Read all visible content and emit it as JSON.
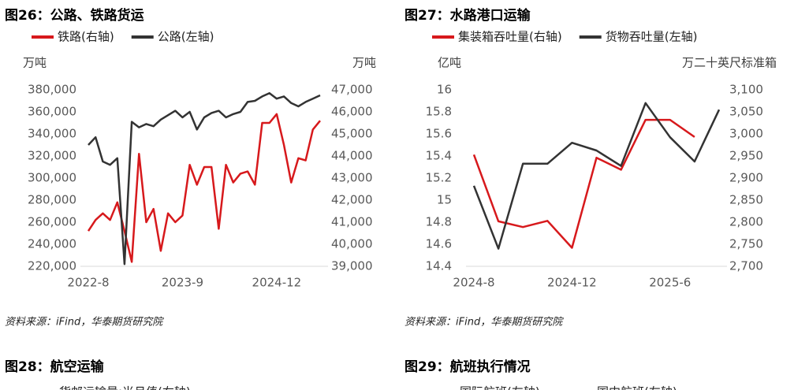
{
  "chart_data": [
    {
      "type": "line",
      "title": "图26：公路、铁路货运",
      "y_unit": "万吨",
      "y2_unit": "万吨",
      "categories": [
        "2022-8",
        null,
        null,
        null,
        null,
        null,
        null,
        null,
        null,
        null,
        null,
        null,
        null,
        "2023-9",
        null,
        null,
        null,
        null,
        null,
        null,
        null,
        null,
        null,
        null,
        null,
        null,
        "2024-12",
        null,
        null,
        null,
        null,
        null,
        null
      ],
      "series": [
        {
          "name": "铁路(右轴)",
          "color": "#d7191c",
          "axis": "y2",
          "values": [
            40600,
            41100,
            41400,
            41100,
            41900,
            40600,
            39200,
            44100,
            41000,
            41600,
            39700,
            41400,
            41000,
            41300,
            43600,
            42700,
            43500,
            43500,
            40700,
            43600,
            42800,
            43200,
            43300,
            42700,
            45500,
            45500,
            45900,
            44500,
            42800,
            43900,
            43800,
            45200,
            45600
          ]
        },
        {
          "name": "公路(左轴)",
          "color": "#333333",
          "values": [
            330000,
            337000,
            315000,
            312000,
            318000,
            222000,
            351000,
            346000,
            349000,
            347000,
            353000,
            357000,
            361000,
            355000,
            360000,
            344000,
            355000,
            359000,
            361000,
            355000,
            358000,
            360000,
            369000,
            370000,
            374000,
            377000,
            372000,
            374000,
            368000,
            365000,
            369000,
            372000,
            375000
          ]
        }
      ],
      "ylim": [
        220000,
        380000
      ],
      "yticks": [
        {
          "value": 220000,
          "label": "220,000"
        },
        {
          "value": 240000,
          "label": "240,000"
        },
        {
          "value": 260000,
          "label": "260,000"
        },
        {
          "value": 280000,
          "label": "280,000"
        },
        {
          "value": 300000,
          "label": "300,000"
        },
        {
          "value": 320000,
          "label": "320,000"
        },
        {
          "value": 340000,
          "label": "340,000"
        },
        {
          "value": 360000,
          "label": "360,000"
        },
        {
          "value": 380000,
          "label": "380,000"
        }
      ],
      "y2lim": [
        39000,
        47000
      ],
      "y2ticks": [
        {
          "value": 39000,
          "label": "39,000"
        },
        {
          "value": 40000,
          "label": "40,000"
        },
        {
          "value": 41000,
          "label": "41,000"
        },
        {
          "value": 42000,
          "label": "42,000"
        },
        {
          "value": 43000,
          "label": "43,000"
        },
        {
          "value": 44000,
          "label": "44,000"
        },
        {
          "value": 45000,
          "label": "45,000"
        },
        {
          "value": 46000,
          "label": "46,000"
        },
        {
          "value": 47000,
          "label": "47,000"
        }
      ],
      "source": "资料来源：iFind，华泰期货研究院"
    },
    {
      "type": "line",
      "title": "图27：水路港口运输",
      "y_unit": "亿吨",
      "y2_unit": "万二十英尺标准箱",
      "categories": [
        "2024-8",
        null,
        null,
        null,
        "2024-12",
        null,
        null,
        null,
        "2025-6",
        null,
        null
      ],
      "series": [
        {
          "name": "集装箱吞吐量(右轴)",
          "color": "#d7191c",
          "axis": "y2",
          "values": [
            2953,
            2802,
            2789,
            2803,
            2742,
            2946,
            2919,
            3032,
            3032,
            2993,
            null
          ]
        },
        {
          "name": "货物吞吐量(左轴)",
          "color": "#333333",
          "values": [
            15.13,
            14.56,
            15.33,
            15.33,
            15.52,
            15.45,
            15.31,
            15.88,
            15.57,
            15.35,
            15.82
          ]
        }
      ],
      "ylim": [
        14.4,
        16
      ],
      "yticks": [
        14.4,
        14.6,
        14.8,
        15,
        15.2,
        15.4,
        15.6,
        15.8,
        16
      ],
      "y2lim": [
        2700,
        3100
      ],
      "y2ticks": [
        {
          "value": 2700,
          "label": "2,700"
        },
        {
          "value": 2750,
          "label": "2,750"
        },
        {
          "value": 2800,
          "label": "2,800"
        },
        {
          "value": 2850,
          "label": "2,850"
        },
        {
          "value": 2900,
          "label": "2,900"
        },
        {
          "value": 2950,
          "label": "2,950"
        },
        {
          "value": 3000,
          "label": "3,000"
        },
        {
          "value": 3050,
          "label": "3,050"
        },
        {
          "value": 3100,
          "label": "3,100"
        }
      ],
      "source": "资料来源：iFind，华泰期货研究院"
    }
  ],
  "next_figures": [
    {
      "title": "图28：航空运输",
      "legend": [
        "货邮运输量:当月值(右轴)"
      ]
    },
    {
      "title": "图29：航班执行情况",
      "legend": [
        "国际航班(左轴)",
        "国内航班(左轴)"
      ]
    }
  ]
}
